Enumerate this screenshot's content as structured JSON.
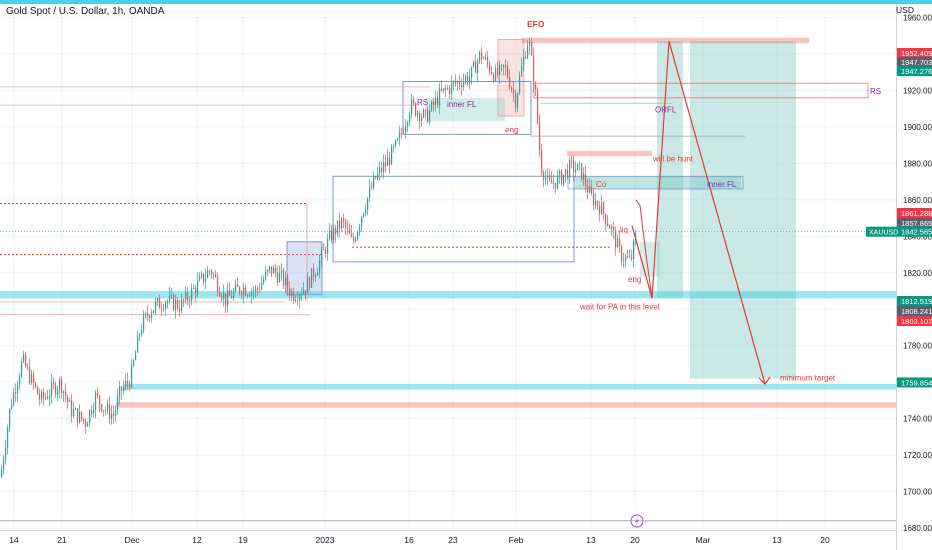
{
  "header": {
    "symbol_title": "Gold Spot / U.S. Dollar, 1h, OANDA",
    "currency": "USD"
  },
  "colors": {
    "candle_up": "#26a69a",
    "candle_down": "#ef5350",
    "zone_blue_line": "#5b7fd6",
    "zone_red_line": "#e57373",
    "target_green": "#80cbc4",
    "level_cyan": "#4dd0e1",
    "annotation_red": "#e53935",
    "annotation_purple": "#8e24aa",
    "price_tag_red": "#f23645",
    "price_tag_green": "#089981",
    "price_tag_gray": "#5d606b"
  },
  "chart_data": {
    "type": "candlestick",
    "title": "Gold Spot / U.S. Dollar, 1h, OANDA",
    "ylabel": "USD",
    "ylim": [
      1680,
      1962
    ],
    "y_ticks": [
      1680,
      1700,
      1720,
      1740,
      1760,
      1780,
      1800,
      1820,
      1840,
      1860,
      1880,
      1900,
      1920,
      1940,
      1960
    ],
    "x_ticks": [
      "14",
      "21",
      "Dec",
      "12",
      "19",
      "2023",
      "16",
      "23",
      "Feb",
      "13",
      "20",
      "Mar",
      "13",
      "20"
    ],
    "grid": true,
    "price_path": [
      [
        0,
        1708
      ],
      [
        10,
        1748
      ],
      [
        22,
        1772
      ],
      [
        40,
        1750
      ],
      [
        60,
        1760
      ],
      [
        70,
        1745
      ],
      [
        85,
        1738
      ],
      [
        95,
        1752
      ],
      [
        105,
        1745
      ],
      [
        113,
        1742
      ],
      [
        120,
        1755
      ],
      [
        130,
        1762
      ],
      [
        140,
        1790
      ],
      [
        150,
        1800
      ],
      [
        165,
        1805
      ],
      [
        180,
        1802
      ],
      [
        195,
        1812
      ],
      [
        210,
        1822
      ],
      [
        225,
        1805
      ],
      [
        240,
        1812
      ],
      [
        255,
        1810
      ],
      [
        270,
        1822
      ],
      [
        280,
        1818
      ],
      [
        292,
        1808
      ],
      [
        305,
        1812
      ],
      [
        318,
        1825
      ],
      [
        330,
        1840
      ],
      [
        342,
        1848
      ],
      [
        352,
        1836
      ],
      [
        362,
        1854
      ],
      [
        375,
        1872
      ],
      [
        388,
        1882
      ],
      [
        398,
        1892
      ],
      [
        410,
        1912
      ],
      [
        425,
        1905
      ],
      [
        440,
        1918
      ],
      [
        455,
        1924
      ],
      [
        470,
        1928
      ],
      [
        480,
        1940
      ],
      [
        495,
        1928
      ],
      [
        505,
        1932
      ],
      [
        515,
        1915
      ],
      [
        522,
        1935
      ],
      [
        528,
        1949
      ],
      [
        535,
        1918
      ],
      [
        540,
        1880
      ],
      [
        548,
        1868
      ],
      [
        560,
        1872
      ],
      [
        570,
        1878
      ],
      [
        580,
        1876
      ],
      [
        590,
        1862
      ],
      [
        600,
        1856
      ],
      [
        610,
        1845
      ],
      [
        620,
        1830
      ],
      [
        630,
        1826
      ],
      [
        636,
        1842
      ]
    ],
    "levels": [
      {
        "price": 1952.409,
        "label": "1952.409"
      },
      {
        "price": 1947.703,
        "label": "1947.703"
      },
      {
        "price": 1947.276,
        "label": "1947.276"
      },
      {
        "price": 1861.288,
        "label": "1861.288"
      },
      {
        "price": 1857.865,
        "label": "1857.865"
      },
      {
        "price": 1842.565,
        "label": "1842.565",
        "symbol": "XAUUSD"
      },
      {
        "price": 1812.519,
        "label": "1812.519"
      },
      {
        "price": 1808.241,
        "label": "1808.241"
      },
      {
        "price": 1803.107,
        "label": "1803.107"
      },
      {
        "price": 1759.854,
        "label": "1759.854"
      }
    ],
    "annotations": [
      "EFO",
      "RS",
      "inner FL",
      "RS",
      "ORFL",
      "eng",
      "will be hunt",
      "Co",
      "inner FL",
      "liq",
      "eng",
      "wait for PA in this level",
      "minimum target"
    ]
  }
}
